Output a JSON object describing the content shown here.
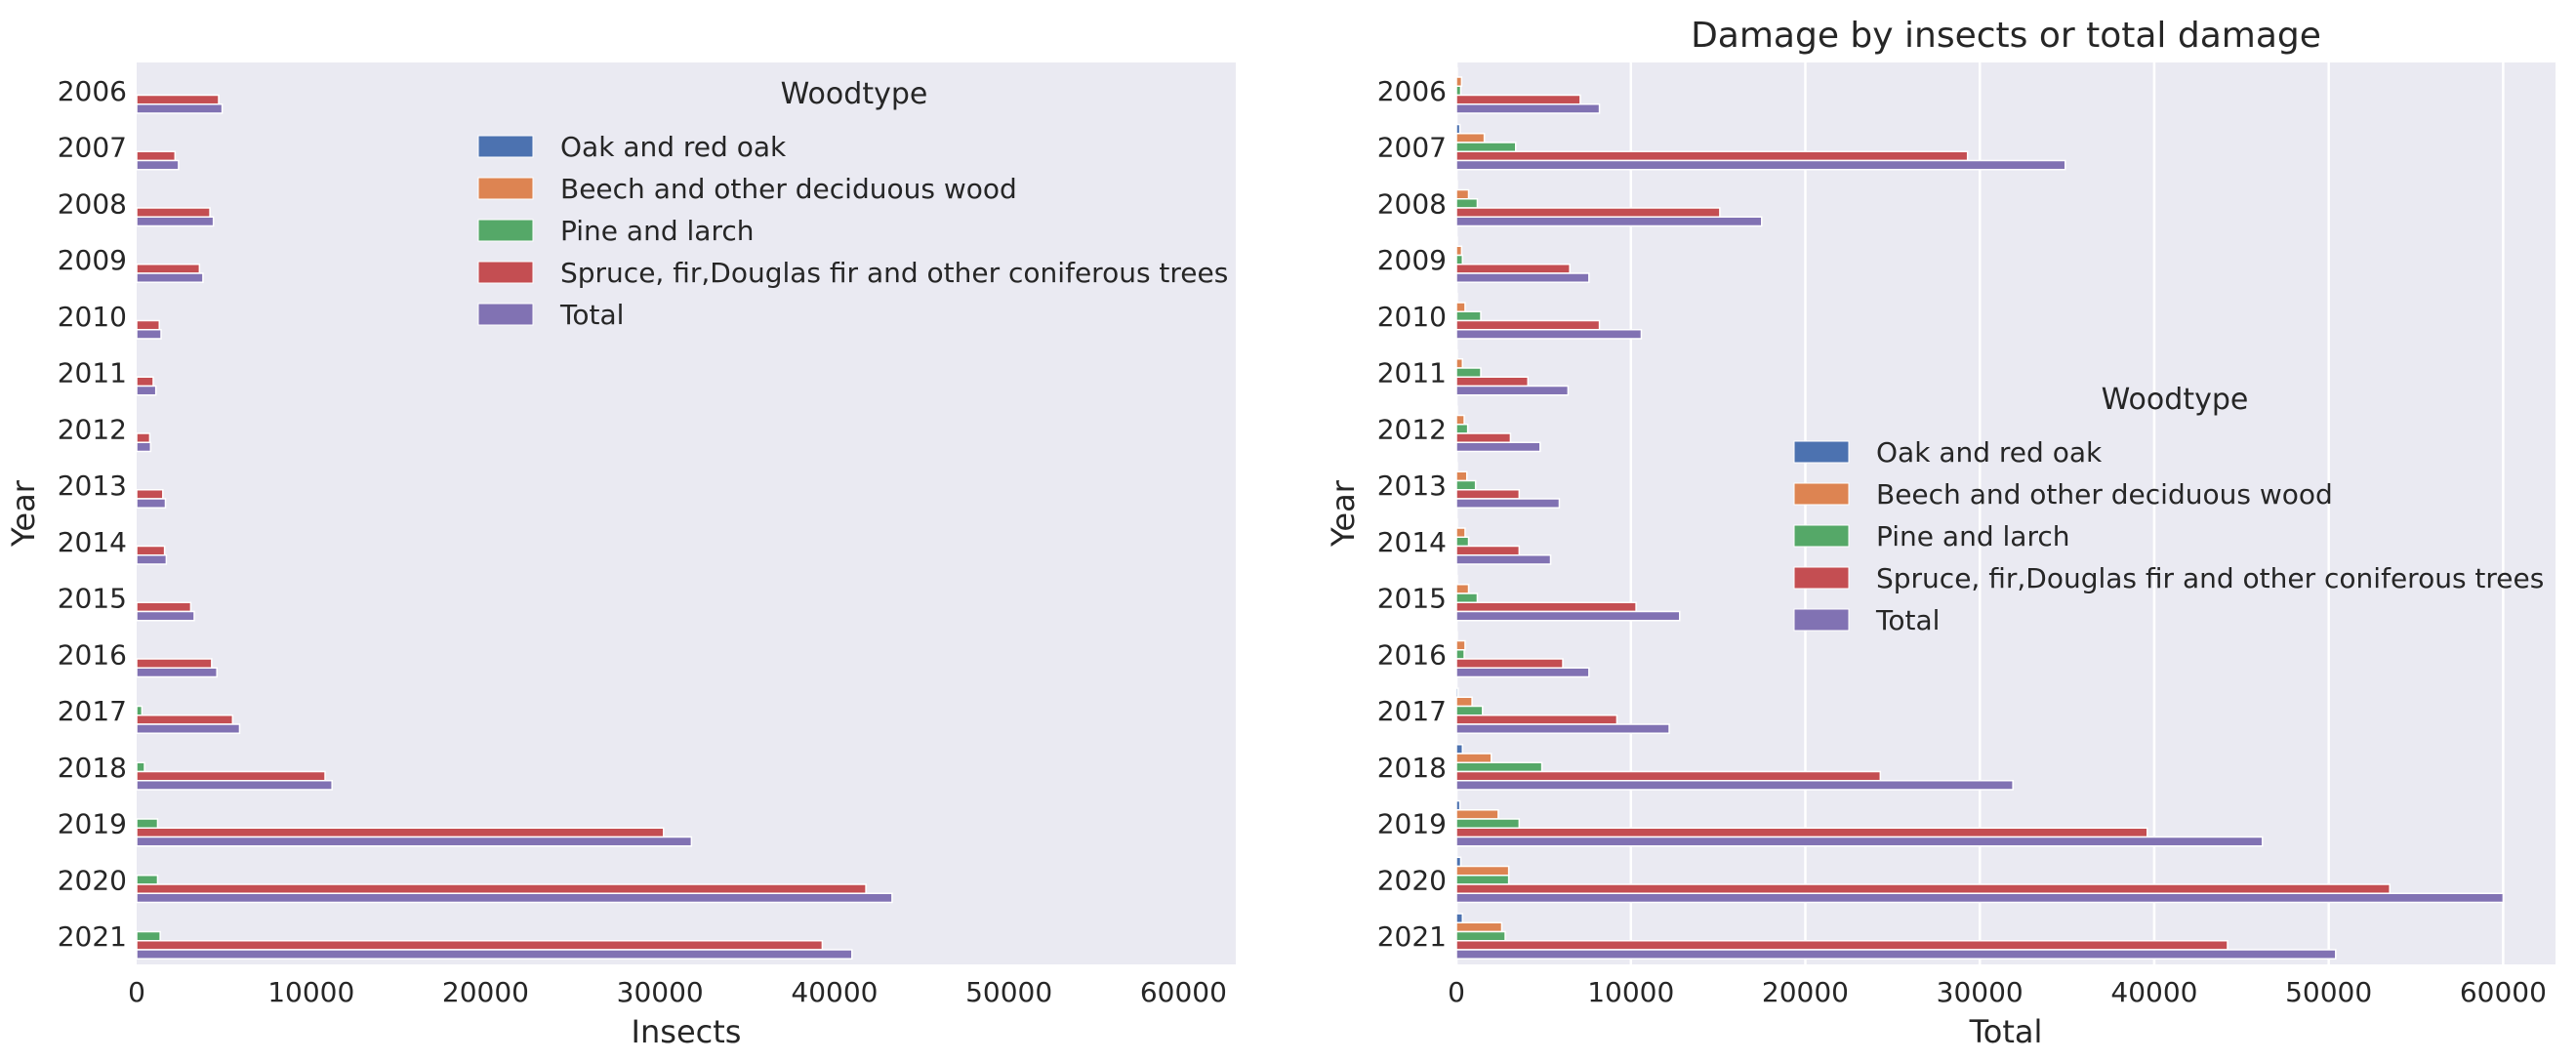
{
  "chart_data": [
    {
      "type": "bar",
      "orientation": "horizontal",
      "title": "",
      "xlabel": "Insects",
      "ylabel": "Year",
      "xlim": [
        0,
        63000
      ],
      "xticks": [
        0,
        10000,
        20000,
        30000,
        40000,
        50000,
        60000
      ],
      "grid": false,
      "legend_title": "Woodtype",
      "legend_location": "upper-center",
      "categories": [
        "2006",
        "2007",
        "2008",
        "2009",
        "2010",
        "2011",
        "2012",
        "2013",
        "2014",
        "2015",
        "2016",
        "2017",
        "2018",
        "2019",
        "2020",
        "2021"
      ],
      "series": [
        {
          "name": "Oak and red oak",
          "color": "#4c72b0",
          "values": [
            0,
            0,
            0,
            0,
            0,
            0,
            0,
            0,
            0,
            0,
            0,
            0,
            0,
            0,
            0,
            0
          ]
        },
        {
          "name": "Beech and other deciduous wood",
          "color": "#dd8452",
          "values": [
            0,
            0,
            0,
            0,
            0,
            0,
            0,
            0,
            0,
            0,
            0,
            0,
            0,
            0,
            0,
            0
          ]
        },
        {
          "name": "Pine and larch",
          "color": "#55a868",
          "values": [
            0,
            0,
            0,
            0,
            0,
            0,
            0,
            0,
            0,
            0,
            0,
            300,
            450,
            1200,
            1200,
            1350
          ]
        },
        {
          "name": "Spruce, fir,Douglas fir and other coniferous trees",
          "color": "#c44e52",
          "values": [
            4700,
            2200,
            4200,
            3600,
            1300,
            950,
            750,
            1500,
            1600,
            3100,
            4300,
            5500,
            10800,
            30200,
            41800,
            39300
          ]
        },
        {
          "name": "Total",
          "color": "#8172b3",
          "values": [
            4900,
            2400,
            4400,
            3800,
            1400,
            1100,
            800,
            1650,
            1700,
            3300,
            4600,
            5900,
            11200,
            31800,
            43300,
            41000
          ]
        }
      ]
    },
    {
      "type": "bar",
      "orientation": "horizontal",
      "title": "Damage by insects or total damage",
      "xlabel": "Total",
      "ylabel": "Year",
      "xlim": [
        0,
        63000
      ],
      "xticks": [
        0,
        10000,
        20000,
        30000,
        40000,
        50000,
        60000
      ],
      "grid": true,
      "legend_title": "Woodtype",
      "legend_location": "center-right",
      "categories": [
        "2006",
        "2007",
        "2008",
        "2009",
        "2010",
        "2011",
        "2012",
        "2013",
        "2014",
        "2015",
        "2016",
        "2017",
        "2018",
        "2019",
        "2020",
        "2021"
      ],
      "series": [
        {
          "name": "Oak and red oak",
          "color": "#4c72b0",
          "values": [
            50,
            200,
            50,
            50,
            50,
            50,
            50,
            50,
            50,
            50,
            50,
            100,
            350,
            200,
            250,
            350
          ]
        },
        {
          "name": "Beech and other deciduous wood",
          "color": "#dd8452",
          "values": [
            300,
            1600,
            700,
            300,
            500,
            350,
            450,
            600,
            500,
            700,
            500,
            900,
            2000,
            2400,
            3000,
            2600
          ]
        },
        {
          "name": "Pine and larch",
          "color": "#55a868",
          "values": [
            250,
            3400,
            1200,
            350,
            1400,
            1400,
            650,
            1100,
            700,
            1200,
            450,
            1500,
            4900,
            3600,
            3000,
            2800
          ]
        },
        {
          "name": "Spruce, fir,Douglas fir and other coniferous trees",
          "color": "#c44e52",
          "values": [
            7100,
            29300,
            15100,
            6500,
            8200,
            4100,
            3100,
            3600,
            3600,
            10300,
            6100,
            9200,
            24300,
            39600,
            53500,
            44200
          ]
        },
        {
          "name": "Total",
          "color": "#8172b3",
          "values": [
            8200,
            34900,
            17500,
            7600,
            10600,
            6400,
            4800,
            5900,
            5400,
            12800,
            7600,
            12200,
            31900,
            46200,
            60000,
            50400
          ]
        }
      ]
    }
  ]
}
